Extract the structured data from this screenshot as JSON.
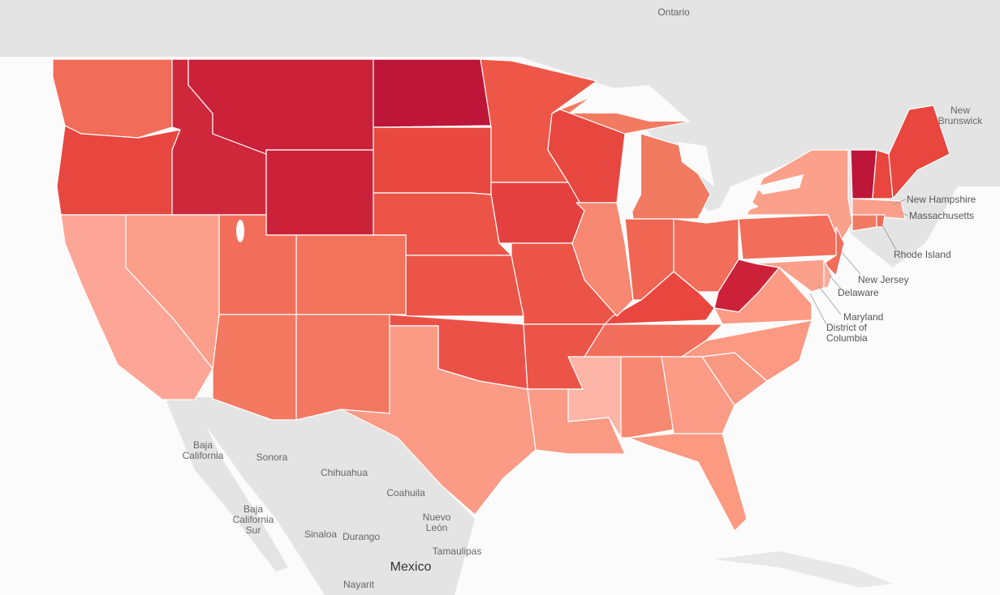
{
  "labels": [
    "Ontario",
    "New Brunswick",
    "New Hampshire",
    "Massachusetts",
    "Rhode Island",
    "New Jersey",
    "Delaware",
    "Maryland",
    "District of Columbia",
    "Baja California",
    "Sonora",
    "Chihuahua",
    "Coahuila",
    "Nuevo León",
    "Baja California Sur",
    "Sinaloa",
    "Durango",
    "Tamaulipas",
    "Mexico",
    "Nayarit"
  ]
}
